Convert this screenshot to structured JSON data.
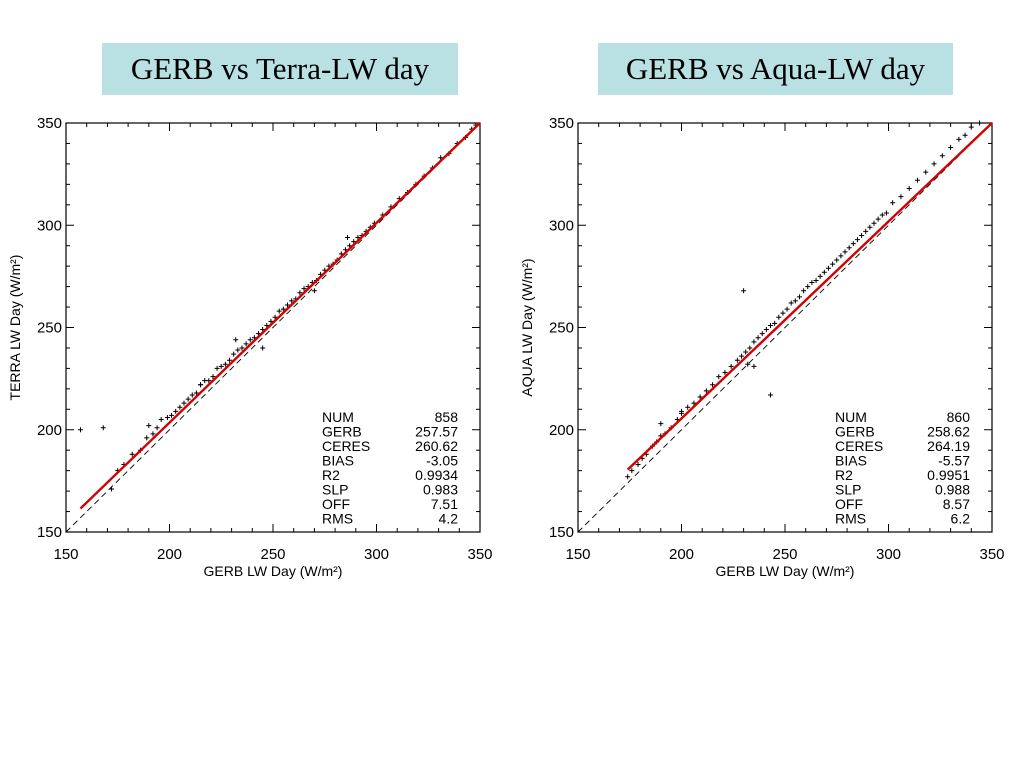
{
  "titles": {
    "left": "GERB vs Terra-LW day",
    "right": "GERB vs Aqua-LW day"
  },
  "chart_data": [
    {
      "type": "scatter",
      "title": "GERB vs Terra-LW day",
      "xlabel": "GERB LW Day (W/m²)",
      "ylabel": "TERRA LW Day (W/m²)",
      "xlim": [
        150,
        350
      ],
      "ylim": [
        150,
        350
      ],
      "xticks": [
        "150",
        "200",
        "250",
        "300",
        "350"
      ],
      "yticks": [
        "150",
        "200",
        "250",
        "300",
        "350"
      ],
      "grid": false,
      "series": [
        {
          "role": "points",
          "marker": "+",
          "color": "#000000",
          "x": [
            157,
            168,
            172,
            175,
            178,
            182,
            186,
            189,
            192,
            194,
            196,
            199,
            201,
            203,
            205,
            207,
            209,
            211,
            213,
            215,
            217,
            219,
            221,
            223,
            225,
            227,
            229,
            231,
            233,
            235,
            237,
            239,
            241,
            243,
            245,
            247,
            249,
            251,
            253,
            255,
            257,
            259,
            261,
            263,
            265,
            267,
            269,
            271,
            273,
            275,
            277,
            279,
            281,
            283,
            285,
            287,
            289,
            291,
            293,
            295,
            297,
            299,
            303,
            307,
            311,
            315,
            319,
            323,
            327,
            331,
            335,
            339,
            343,
            346,
            348,
            190,
            215,
            232,
            245,
            270,
            286
          ],
          "y": [
            200,
            201,
            171,
            180,
            183,
            188,
            190,
            196,
            198,
            201,
            205,
            206,
            207,
            209,
            211,
            213,
            215,
            217,
            218,
            222,
            224,
            224,
            226,
            230,
            231,
            232,
            234,
            237,
            239,
            240,
            242,
            244,
            245,
            247,
            249,
            251,
            253,
            255,
            258,
            259,
            261,
            263,
            264,
            267,
            269,
            270,
            272,
            273,
            276,
            278,
            280,
            281,
            283,
            286,
            288,
            290,
            292,
            294,
            295,
            297,
            299,
            301,
            305,
            309,
            313,
            316,
            320,
            324,
            328,
            333,
            335,
            340,
            343,
            347,
            349,
            202,
            222,
            244,
            240,
            268,
            294
          ]
        },
        {
          "role": "regression",
          "color": "#d40000",
          "x": [
            157,
            350
          ],
          "y": [
            161.5,
            351.3
          ]
        },
        {
          "role": "one-to-one",
          "style": "dashed",
          "color": "#000000",
          "x": [
            150,
            350
          ],
          "y": [
            150,
            350
          ]
        }
      ],
      "stats": [
        {
          "label": "NUM",
          "value": "858"
        },
        {
          "label": "GERB",
          "value": "257.57"
        },
        {
          "label": "CERES",
          "value": "260.62"
        },
        {
          "label": "BIAS",
          "value": "-3.05"
        },
        {
          "label": "R2",
          "value": "0.9934"
        },
        {
          "label": "SLP",
          "value": "0.983"
        },
        {
          "label": "OFF",
          "value": "7.51"
        },
        {
          "label": "RMS",
          "value": "4.2"
        }
      ]
    },
    {
      "type": "scatter",
      "title": "GERB vs Aqua-LW day",
      "xlabel": "GERB LW Day (W/m²)",
      "ylabel": "AQUA LW Day (W/m²)",
      "xlim": [
        150,
        350
      ],
      "ylim": [
        150,
        350
      ],
      "xticks": [
        "150",
        "200",
        "250",
        "300",
        "350"
      ],
      "yticks": [
        "150",
        "200",
        "250",
        "300",
        "350"
      ],
      "grid": false,
      "series": [
        {
          "role": "points",
          "marker": "+",
          "color": "#000000",
          "x": [
            174,
            176,
            179,
            181,
            183,
            186,
            188,
            190,
            192,
            195,
            198,
            200,
            203,
            206,
            209,
            212,
            215,
            218,
            221,
            224,
            227,
            229,
            231,
            233,
            235,
            237,
            239,
            241,
            243,
            245,
            247,
            249,
            251,
            253,
            255,
            257,
            259,
            261,
            263,
            265,
            267,
            269,
            271,
            273,
            275,
            277,
            279,
            281,
            283,
            285,
            287,
            289,
            291,
            293,
            295,
            297,
            299,
            302,
            306,
            310,
            314,
            318,
            322,
            326,
            330,
            334,
            337,
            340,
            344,
            230,
            243,
            232,
            235,
            190,
            200
          ],
          "y": [
            177,
            180,
            183,
            186,
            188,
            192,
            194,
            197,
            198,
            201,
            205,
            208,
            211,
            213,
            216,
            219,
            222,
            226,
            228,
            231,
            234,
            236,
            238,
            240,
            243,
            245,
            247,
            249,
            251,
            252,
            255,
            257,
            259,
            262,
            263,
            265,
            268,
            270,
            272,
            273,
            275,
            277,
            279,
            281,
            283,
            285,
            287,
            289,
            291,
            293,
            295,
            297,
            299,
            301,
            303,
            305,
            306,
            311,
            314,
            318,
            322,
            326,
            330,
            334,
            338,
            342,
            344,
            348,
            350,
            268,
            217,
            232,
            231,
            203,
            209
          ]
        },
        {
          "role": "regression",
          "color": "#d40000",
          "x": [
            174,
            350
          ],
          "y": [
            180.5,
            353.3
          ]
        },
        {
          "role": "one-to-one",
          "style": "dashed",
          "color": "#000000",
          "x": [
            150,
            350
          ],
          "y": [
            150,
            350
          ]
        }
      ],
      "stats": [
        {
          "label": "NUM",
          "value": "860"
        },
        {
          "label": "GERB",
          "value": "258.62"
        },
        {
          "label": "CERES",
          "value": "264.19"
        },
        {
          "label": "BIAS",
          "value": "-5.57"
        },
        {
          "label": "R2",
          "value": "0.9951"
        },
        {
          "label": "SLP",
          "value": "0.988"
        },
        {
          "label": "OFF",
          "value": "8.57"
        },
        {
          "label": "RMS",
          "value": "6.2"
        }
      ]
    }
  ]
}
